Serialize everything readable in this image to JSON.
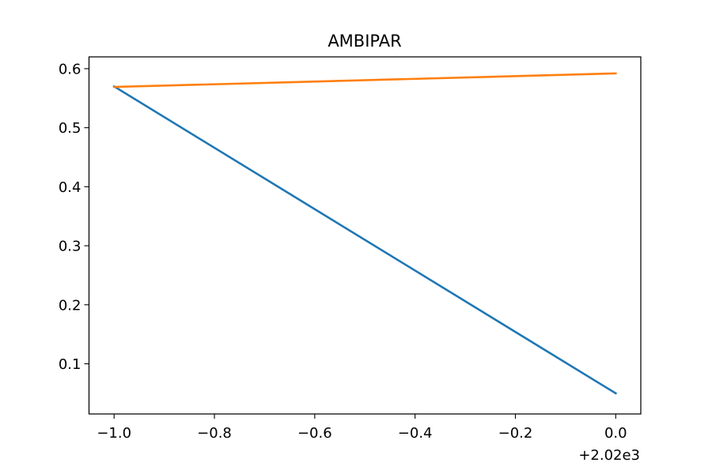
{
  "chart_data": {
    "type": "line",
    "title": "AMBIPAR",
    "xlabel": "",
    "ylabel": "",
    "x_offset_label": "+2.02e3",
    "xlim": [
      -1.05,
      0.05
    ],
    "ylim": [
      0.015,
      0.62
    ],
    "x_ticks": [
      -1.0,
      -0.8,
      -0.6,
      -0.4,
      -0.2,
      0.0
    ],
    "x_tick_labels": [
      "−1.0",
      "−0.8",
      "−0.6",
      "−0.4",
      "−0.2",
      "0.0"
    ],
    "y_ticks": [
      0.1,
      0.2,
      0.3,
      0.4,
      0.5,
      0.6
    ],
    "y_tick_labels": [
      "0.1",
      "0.2",
      "0.3",
      "0.4",
      "0.5",
      "0.6"
    ],
    "grid": false,
    "legend": "none",
    "series": [
      {
        "color": "#1f77b4",
        "x": [
          -1.0,
          0.0
        ],
        "y": [
          0.57,
          0.05
        ]
      },
      {
        "color": "#ff7f0e",
        "x": [
          -1.0,
          0.0
        ],
        "y": [
          0.569,
          0.592
        ]
      }
    ]
  }
}
